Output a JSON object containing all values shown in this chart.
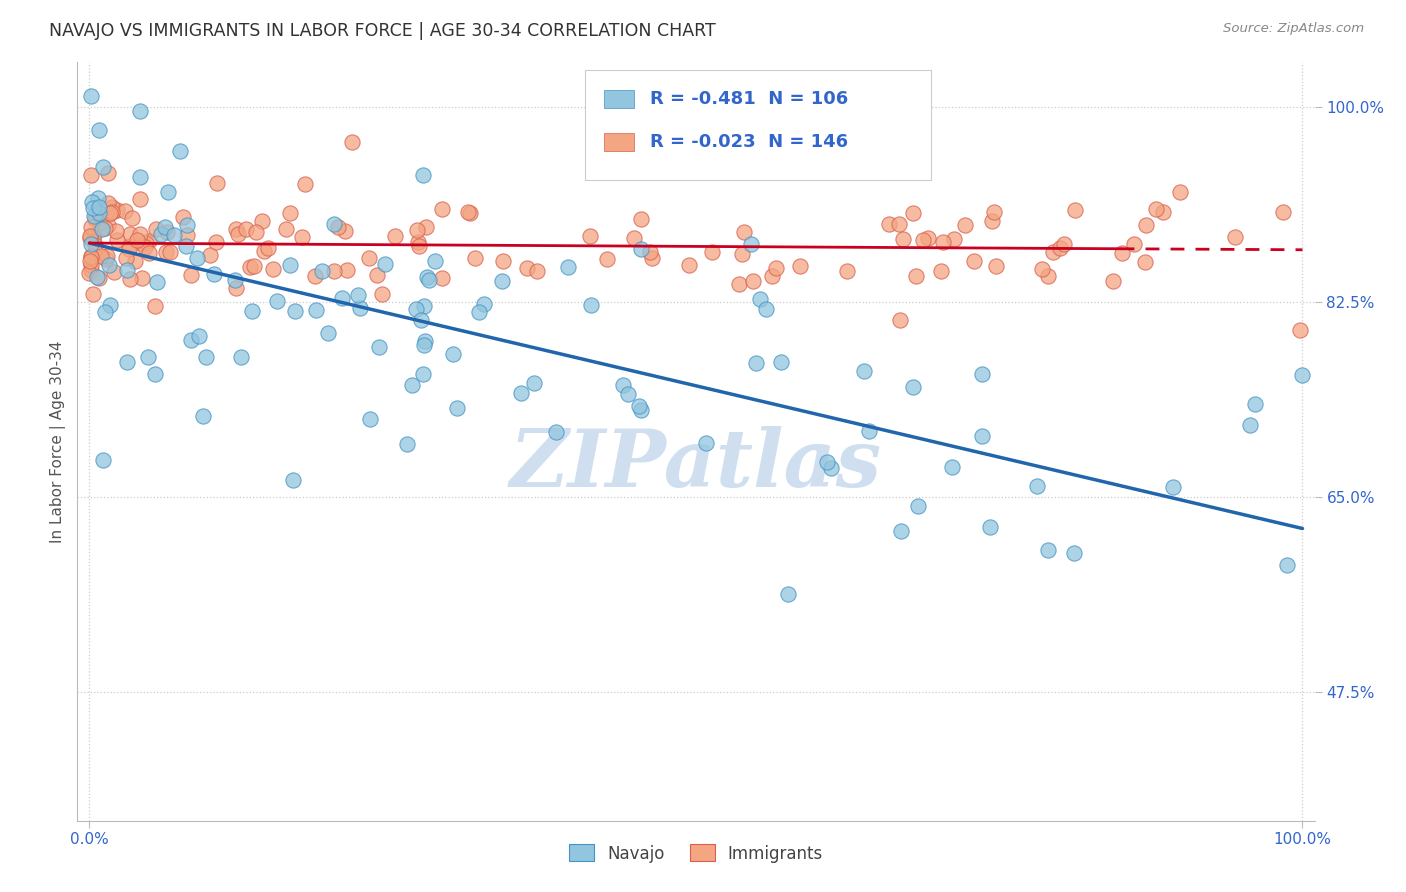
{
  "title": "NAVAJO VS IMMIGRANTS IN LABOR FORCE | AGE 30-34 CORRELATION CHART",
  "source": "Source: ZipAtlas.com",
  "ylabel": "In Labor Force | Age 30-34",
  "xlim": [
    -0.01,
    1.01
  ],
  "ylim": [
    0.36,
    1.04
  ],
  "x_tick_positions": [
    0.0,
    1.0
  ],
  "x_tick_labels": [
    "0.0%",
    "100.0%"
  ],
  "y_ticks": [
    1.0,
    0.825,
    0.65,
    0.475
  ],
  "y_tick_labels": [
    "100.0%",
    "82.5%",
    "65.0%",
    "47.5%"
  ],
  "legend_labels": [
    "Navajo",
    "Immigrants"
  ],
  "navajo_R": -0.481,
  "navajo_N": 106,
  "immigrants_R": -0.023,
  "immigrants_N": 146,
  "navajo_color": "#92c5de",
  "navajo_edge_color": "#4393c3",
  "immigrants_color": "#f4a582",
  "immigrants_edge_color": "#d6604d",
  "navajo_line_color": "#2166ac",
  "immigrants_line_color": "#ca0020",
  "watermark": "ZIPatlas",
  "watermark_color": "#d0dff0",
  "background_color": "#ffffff",
  "grid_color": "#cccccc",
  "tick_color": "#3366cc",
  "ylabel_color": "#555555",
  "title_color": "#333333",
  "source_color": "#888888",
  "legend_box_color": "#eeeeee",
  "navajo_line_y0": 0.878,
  "navajo_line_y1": 0.622,
  "immigrants_line_y0": 0.878,
  "immigrants_line_y1": 0.872
}
